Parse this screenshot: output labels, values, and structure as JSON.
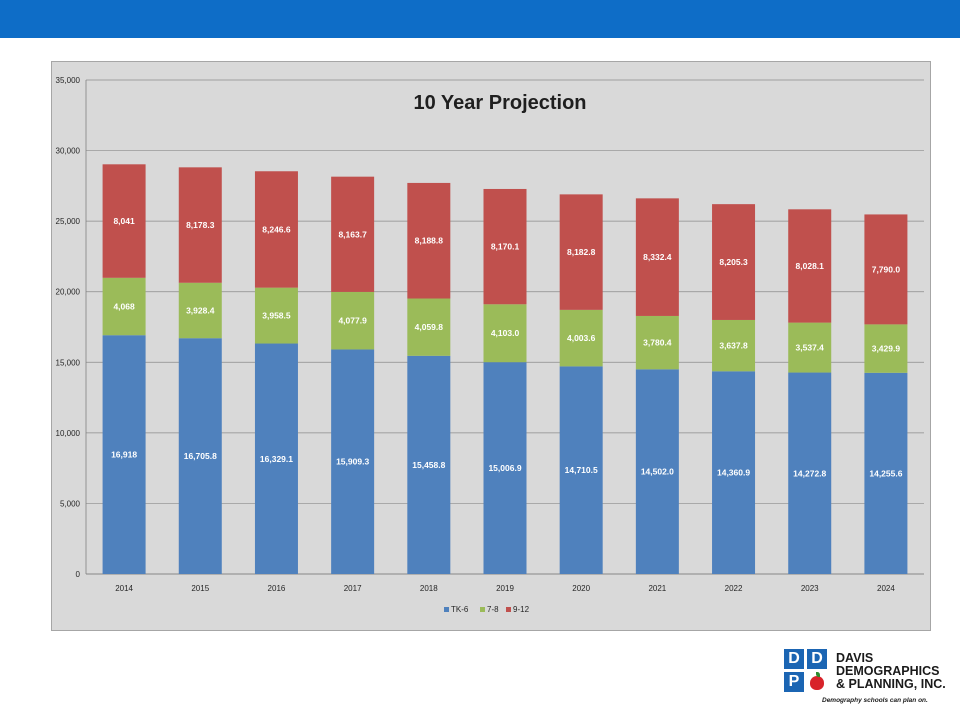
{
  "chart_data": {
    "type": "bar",
    "stacked": true,
    "title": "10 Year Projection",
    "xlabel": "",
    "ylabel": "",
    "categories": [
      "2014",
      "2015",
      "2016",
      "2017",
      "2018",
      "2019",
      "2020",
      "2021",
      "2022",
      "2023",
      "2024"
    ],
    "ylim": [
      0,
      35000
    ],
    "yticks": [
      0,
      5000,
      10000,
      15000,
      20000,
      25000,
      30000,
      35000
    ],
    "ytick_labels": [
      "0",
      "5,000",
      "10,000",
      "15,000",
      "20,000",
      "25,000",
      "30,000",
      "35,000"
    ],
    "grid": true,
    "legend_position": "bottom",
    "series": [
      {
        "name": "TK-6",
        "color": "#4f81bd",
        "values": [
          16918,
          16705.8,
          16329.1,
          15909.3,
          15458.8,
          15006.9,
          14710.5,
          14502.0,
          14360.9,
          14272.8,
          14255.6
        ],
        "labels": [
          "16,918",
          "16,705.8",
          "16,329.1",
          "15,909.3",
          "15,458.8",
          "15,006.9",
          "14,710.5",
          "14,502.0",
          "14,360.9",
          "14,272.8",
          "14,255.6"
        ]
      },
      {
        "name": "7-8",
        "color": "#9bbb59",
        "values": [
          4068,
          3928.4,
          3958.5,
          4077.9,
          4059.8,
          4103.0,
          4003.6,
          3780.4,
          3637.8,
          3537.4,
          3429.9
        ],
        "labels": [
          "4,068",
          "3,928.4",
          "3,958.5",
          "4,077.9",
          "4,059.8",
          "4,103.0",
          "4,003.6",
          "3,780.4",
          "3,637.8",
          "3,537.4",
          "3,429.9"
        ]
      },
      {
        "name": "9-12",
        "color": "#c0504d",
        "values": [
          8041,
          8178.3,
          8246.6,
          8163.7,
          8188.8,
          8170.1,
          8182.8,
          8332.4,
          8205.3,
          8028.1,
          7790.0
        ],
        "labels": [
          "8,041",
          "8,178.3",
          "8,246.6",
          "8,163.7",
          "8,188.8",
          "8,170.1",
          "8,182.8",
          "8,332.4",
          "8,205.3",
          "8,028.1",
          "7,790.0"
        ]
      }
    ]
  },
  "header": {
    "band_color": "#0e6dc7"
  },
  "logo": {
    "tile_letters": [
      "D",
      "D",
      "P"
    ],
    "name_lines": [
      "DAVIS",
      "DEMOGRAPHICS",
      "& PLANNING, INC."
    ],
    "tagline": "Demography schools can plan on.",
    "icon": "apple-icon",
    "brand_color": "#1b65b3"
  }
}
